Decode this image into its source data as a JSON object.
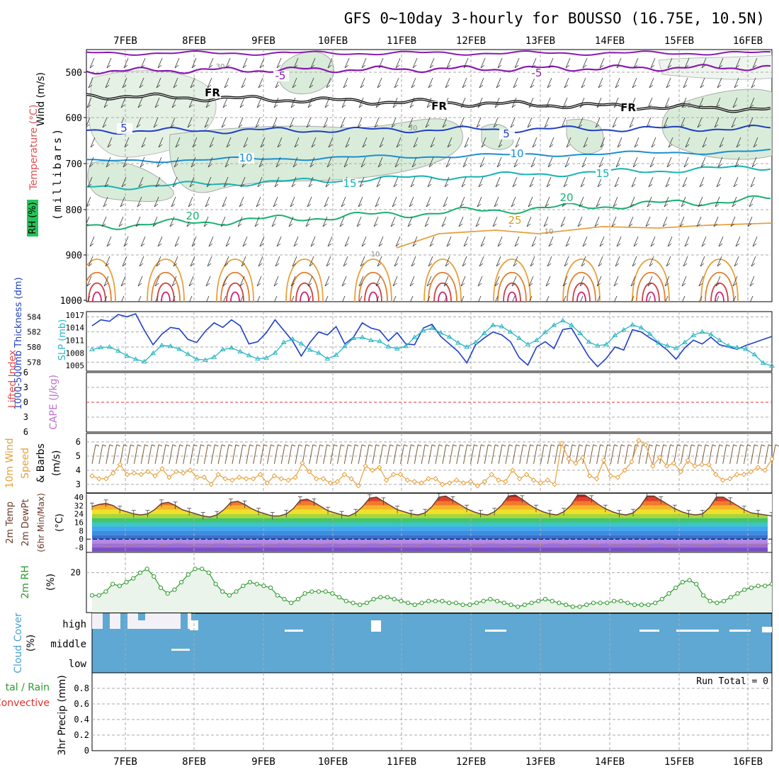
{
  "title": "GFS 0~10day 3-hourly for BOUSSO (16.75E, 10.5N)",
  "dates": [
    "7FEB",
    "8FEB",
    "9FEB",
    "10FEB",
    "11FEB",
    "12FEB",
    "13FEB",
    "14FEB",
    "15FEB",
    "16FEB"
  ],
  "colors": {
    "rh_fill": "#d9ecd9",
    "thickness": "#1f3fc4",
    "slp": "#2ab7c5",
    "wind": "#e7a03c",
    "rh2m": "#2e9a2e",
    "cloud": "#5fa8d3",
    "freezing": "#000000"
  },
  "panels": {
    "upper": {
      "ylabel_wind": "Wind (m/s)",
      "ylabel_temp": "Temperature (°C)",
      "ylabel_rh": "RH (%)",
      "ylabel_mb": "(millibars)",
      "ticks": [
        "500",
        "600",
        "700",
        "800",
        "900",
        "1000"
      ]
    },
    "slp": {
      "ylabel_thick": "1000-500mb Thickness (dm)",
      "ylabel_slp": "SLP (mb)",
      "left_ticks": [
        "584",
        "582",
        "580",
        "578"
      ],
      "right_ticks": [
        "1017",
        "1014",
        "1011",
        "1008",
        "1005"
      ]
    },
    "cape": {
      "ylabel_li": "Lifted Index",
      "ylabel_cape": "CAPE (J/kg)",
      "ticks": [
        "-6",
        "-3",
        "0",
        "3",
        "6"
      ]
    },
    "wind10m": {
      "ylabel1": "10m Wind",
      "ylabel2": "Speed",
      "ylabel3": "& Barbs",
      "ylabel_unit": "(m/s)",
      "ticks": [
        "6",
        "5",
        "4",
        "3"
      ]
    },
    "temp2m": {
      "ylabel1": "2m Temp",
      "ylabel2": "2m DewPt",
      "ylabel3": "(6hr Min/Max)",
      "ylabel_unit": "(°C)",
      "ticks": [
        "40",
        "32",
        "24",
        "16",
        "8",
        "0",
        "-8"
      ]
    },
    "rh2m": {
      "ylabel1": "2m RH",
      "ylabel_unit": "(%)",
      "ticks": [
        "20"
      ]
    },
    "cloud": {
      "ylabel": "Cloud Cover",
      "ylabel_unit": "(%)",
      "levels": [
        "high",
        "middle",
        "low"
      ]
    },
    "precip": {
      "ylabel1": "tal / Rain",
      "ylabel2": "Convective",
      "ylabel3": "3hr Precip (mm)",
      "ticks": [
        "0.8",
        "0.6",
        "0.4",
        "0.2",
        "0"
      ],
      "run_total": "Run Total = 0"
    }
  },
  "upper_labels": [
    {
      "text": "-5",
      "color": "#8a1ab0"
    },
    {
      "text": "-5",
      "color": "#8a1ab0"
    },
    {
      "text": "FR",
      "color": "#000000"
    },
    {
      "text": "FR",
      "color": "#000000"
    },
    {
      "text": "FR",
      "color": "#000000"
    },
    {
      "text": "5",
      "color": "#1f3fc4"
    },
    {
      "text": "5",
      "color": "#1f3fc4"
    },
    {
      "text": "10",
      "color": "#1b8fd1"
    },
    {
      "text": "10",
      "color": "#1b8fd1"
    },
    {
      "text": "15",
      "color": "#18b3b3"
    },
    {
      "text": "15",
      "color": "#18b3b3"
    },
    {
      "text": "20",
      "color": "#19b070"
    },
    {
      "text": "20",
      "color": "#19b070"
    },
    {
      "text": "25",
      "color": "#d9a020"
    },
    {
      "text": "30",
      "color": "#888888"
    },
    {
      "text": "30",
      "color": "#888888"
    },
    {
      "text": "30",
      "color": "#888888"
    },
    {
      "text": "10",
      "color": "#888888"
    },
    {
      "text": "10",
      "color": "#888888"
    }
  ],
  "chart_data": [
    {
      "type": "line",
      "title": "1000-500mb Thickness (dm) / SLP (mb)",
      "series": [
        {
          "name": "1000-500mb Thickness (dm)",
          "values": [
            582.8,
            583.6,
            583.4,
            584.3,
            584.0,
            584.4,
            582.2,
            580.3,
            581.7,
            582.6,
            582.4,
            581.0,
            580.6,
            582.1,
            583.2,
            582.6,
            583.6,
            582.8,
            580.4,
            580.7,
            581.9,
            583.6,
            582.2,
            580.8,
            578.8,
            580.6,
            582.0,
            581.6,
            582.7,
            580.4,
            581.3,
            583.2,
            582.5,
            582.2,
            580.8,
            581.9,
            580.4,
            580.3,
            582.5,
            583.0,
            581.4,
            580.4,
            579.4,
            577.9,
            580.3,
            581.2,
            582.0,
            581.6,
            580.7,
            578.6,
            577.6,
            580.0,
            580.7,
            579.8,
            582.3,
            582.5,
            580.6,
            578.7,
            577.4,
            578.5,
            580.0,
            579.6,
            582.3,
            582.0,
            581.2,
            580.5,
            579.6,
            578.4,
            579.9,
            580.9,
            580.4,
            581.3,
            580.3,
            580.0,
            579.7,
            580.2,
            580.6,
            581.0,
            581.4
          ],
          "ylim": [
            577,
            584.5
          ]
        },
        {
          "name": "SLP (mb)",
          "values": [
            1008.8,
            1009.3,
            1009.4,
            1008.5,
            1007.3,
            1006.5,
            1005.9,
            1007.9,
            1009.8,
            1009.6,
            1008.9,
            1007.7,
            1006.5,
            1006.3,
            1007.0,
            1008.8,
            1009.2,
            1008.3,
            1007.4,
            1006.6,
            1006.8,
            1008.0,
            1010.5,
            1011.3,
            1010.2,
            1008.7,
            1008.0,
            1006.6,
            1007.5,
            1009.6,
            1011.5,
            1011.7,
            1011.0,
            1010.8,
            1009.5,
            1009.0,
            1009.6,
            1011.7,
            1013.3,
            1013.9,
            1012.8,
            1011.8,
            1010.4,
            1009.4,
            1010.5,
            1012.7,
            1014.6,
            1014.3,
            1013.0,
            1011.5,
            1010.0,
            1011.0,
            1012.9,
            1014.6,
            1015.7,
            1014.6,
            1012.7,
            1010.6,
            1009.7,
            1010.0,
            1012.2,
            1013.5,
            1014.7,
            1014.0,
            1012.5,
            1010.4,
            1009.7,
            1009.1,
            1010.5,
            1012.2,
            1013.0,
            1012.4,
            1011.0,
            1009.7,
            1009.3,
            1008.9,
            1007.6,
            1005.6,
            1004.9
          ],
          "ylim": [
            1004,
            1017.5
          ]
        }
      ]
    },
    {
      "type": "line",
      "title": "10m Wind Speed (m/s)",
      "series": [
        {
          "name": "10m Wind Speed",
          "values": [
            3.6,
            3.4,
            3.4,
            3.8,
            4.4,
            3.7,
            3.8,
            3.7,
            3.9,
            3.6,
            4.1,
            3.5,
            3.9,
            3.8,
            4.0,
            3.5,
            3.5,
            3.0,
            3.7,
            3.4,
            3.3,
            3.5,
            3.4,
            3.4,
            3.7,
            3.1,
            3.6,
            3.4,
            3.3,
            3.5,
            4.5,
            3.9,
            3.4,
            3.4,
            3.1,
            3.2,
            3.7,
            3.4,
            2.9,
            4.3,
            4.0,
            4.2,
            3.3,
            3.7,
            3.7,
            3.3,
            3.2,
            3.1,
            3.4,
            3.4,
            3.0,
            3.1,
            3.3,
            3.1,
            3.2,
            2.9,
            3.2,
            3.7,
            3.3,
            3.2,
            4.0,
            3.4,
            3.7,
            3.3,
            3.1,
            3.3,
            3.0,
            5.9,
            4.8,
            4.5,
            4.9,
            3.6,
            3.4,
            4.7,
            3.6,
            3.5,
            4.0,
            4.6,
            6.1,
            5.8,
            4.3,
            4.9,
            4.3,
            4.5,
            3.9,
            4.7,
            4.3,
            4.4,
            4.4,
            3.7,
            3.3,
            3.4,
            3.7,
            3.7,
            3.9,
            4.2,
            4.0,
            4.8
          ],
          "ylim": [
            2.5,
            6.5
          ]
        }
      ]
    },
    {
      "type": "area",
      "title": "2m Temp / DewPt (°C)",
      "series": [
        {
          "name": "2m Temp",
          "values": [
            31,
            33,
            34,
            32,
            28,
            26,
            24,
            23,
            24,
            28,
            34,
            35,
            32,
            28,
            26,
            24,
            22,
            21,
            23,
            28,
            35,
            36,
            33,
            29,
            26,
            24,
            22,
            22,
            24,
            29,
            37,
            38,
            35,
            31,
            27,
            25,
            23,
            22,
            25,
            31,
            39,
            40,
            36,
            32,
            28,
            26,
            24,
            23,
            25,
            31,
            40,
            41,
            37,
            33,
            29,
            26,
            24,
            23,
            26,
            32,
            41,
            42,
            38,
            33,
            29,
            26,
            24,
            23,
            26,
            32,
            42,
            42,
            38,
            33,
            29,
            26,
            24,
            23,
            25,
            31,
            41,
            41,
            37,
            33,
            29,
            26,
            24,
            23,
            24,
            30,
            40,
            40,
            36,
            32,
            28,
            25,
            24,
            23,
            22
          ],
          "ylim": [
            -12,
            42
          ]
        },
        {
          "name": "2m DewPt",
          "values": [
            -6,
            -6,
            -7,
            -7,
            -6,
            -5,
            -5,
            -6,
            -7,
            -6,
            -5,
            -5,
            -4,
            -4,
            -5,
            -6,
            -6,
            -5,
            -4,
            -4,
            -5,
            -6,
            -7,
            -7,
            -6,
            -5,
            -5,
            -4,
            -4,
            -5,
            -6,
            -6,
            -5,
            -5,
            -4,
            -4,
            -5,
            -6,
            -6,
            -5,
            -4,
            -4,
            -5,
            -6,
            -7,
            -7,
            -6,
            -5,
            -4,
            -4,
            -5,
            -6,
            -7,
            -7,
            -6,
            -5,
            -5,
            -4,
            -4,
            -5,
            -6,
            -7,
            -7,
            -6,
            -5,
            -5,
            -4,
            -4,
            -5,
            -6,
            -6,
            -6,
            -5,
            -5,
            -4,
            -5,
            -5,
            -6,
            -6,
            -5,
            -5,
            -4,
            -4,
            -5,
            -5,
            -6,
            -6,
            -5,
            -5,
            -5,
            -4,
            -4,
            -5,
            -5,
            -6,
            -5,
            -5,
            -5,
            -4
          ],
          "ylim": [
            -12,
            42
          ]
        }
      ]
    },
    {
      "type": "area",
      "title": "2m RH (%)",
      "series": [
        {
          "name": "2m RH",
          "values": [
            8,
            8,
            10,
            14,
            13,
            15,
            17,
            20,
            22,
            18,
            12,
            9,
            11,
            15,
            19,
            22,
            22,
            20,
            14,
            10,
            8,
            10,
            13,
            15,
            14,
            13,
            12,
            8,
            6,
            4,
            6,
            9,
            10,
            10,
            10,
            9,
            7,
            5,
            4,
            3,
            4,
            6,
            7,
            7,
            6,
            5,
            4,
            3,
            4,
            5,
            5,
            5,
            4,
            4,
            3,
            3,
            4,
            5,
            6,
            5,
            4,
            3,
            2,
            3,
            4,
            5,
            6,
            5,
            4,
            3,
            2,
            2,
            3,
            4,
            4,
            4,
            5,
            5,
            4,
            3,
            3,
            3,
            4,
            6,
            9,
            12,
            15,
            16,
            14,
            8,
            5,
            4,
            5,
            7,
            9,
            11,
            12,
            13,
            13,
            14
          ],
          "ylim": [
            0,
            30
          ]
        }
      ]
    },
    {
      "type": "bar",
      "title": "3hr Precip (mm)",
      "series": [
        {
          "name": "3hr Precip",
          "values": [
            0,
            0,
            0,
            0,
            0,
            0,
            0,
            0,
            0,
            0
          ]
        }
      ],
      "ylim": [
        0,
        1
      ]
    }
  ]
}
